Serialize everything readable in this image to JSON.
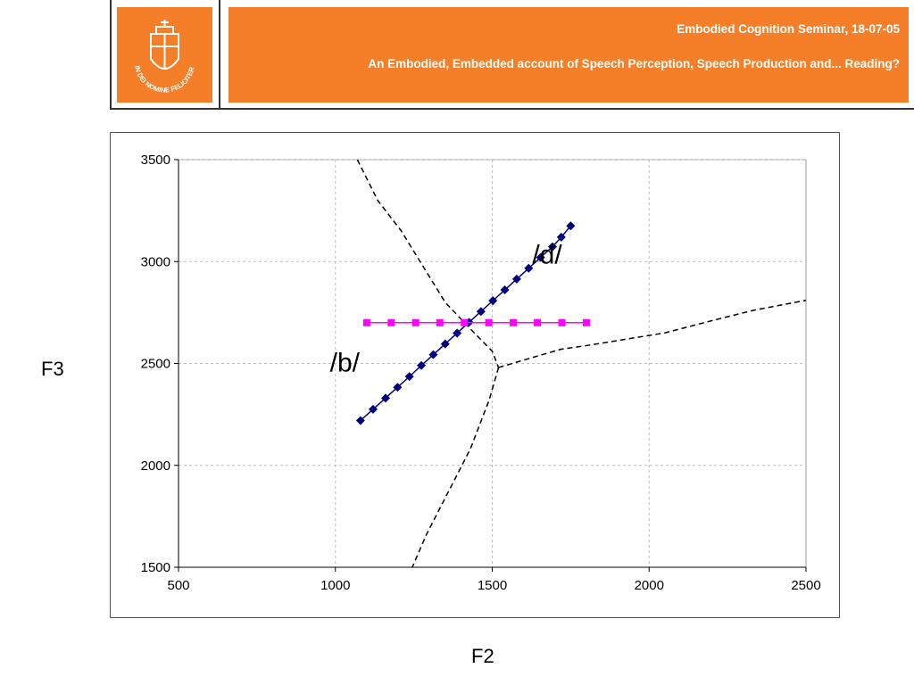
{
  "header": {
    "seminar": "Embodied Cognition Seminar, 18-07-05",
    "title": "An Embodied, Embedded account of Speech Perception, Speech Production and... Reading?",
    "logo_text": "IN DEI NOMINE FELICITER",
    "accent_color": "#f47f28"
  },
  "chart_data": {
    "type": "scatter",
    "xlabel": "F2",
    "ylabel": "F3",
    "xlim": [
      500,
      2500
    ],
    "ylim": [
      1500,
      3500
    ],
    "xticks": [
      "500",
      "1000",
      "1500",
      "2000",
      "2500"
    ],
    "yticks": [
      "1500",
      "2000",
      "2500",
      "3000",
      "3500"
    ],
    "grid": true,
    "series": [
      {
        "color": "#00007f",
        "marker": "diamond",
        "points": [
          [
            1080,
            2220
          ],
          [
            1120,
            2275
          ],
          [
            1160,
            2330
          ],
          [
            1198,
            2383
          ],
          [
            1236,
            2436
          ],
          [
            1274,
            2490
          ],
          [
            1312,
            2543
          ],
          [
            1350,
            2596
          ],
          [
            1388,
            2649
          ],
          [
            1426,
            2702
          ],
          [
            1464,
            2755
          ],
          [
            1502,
            2808
          ],
          [
            1540,
            2861
          ],
          [
            1578,
            2914
          ],
          [
            1616,
            2967
          ],
          [
            1654,
            3020
          ],
          [
            1692,
            3073
          ],
          [
            1720,
            3120
          ],
          [
            1750,
            3175
          ]
        ]
      },
      {
        "color": "#ff00ff",
        "marker": "square",
        "points": [
          [
            1100,
            2700
          ],
          [
            1178,
            2700
          ],
          [
            1256,
            2700
          ],
          [
            1333,
            2700
          ],
          [
            1411,
            2700
          ],
          [
            1489,
            2700
          ],
          [
            1567,
            2700
          ],
          [
            1644,
            2700
          ],
          [
            1722,
            2700
          ],
          [
            1800,
            2700
          ]
        ]
      }
    ],
    "boundaries": [
      [
        [
          1070,
          3500
        ],
        [
          1135,
          3300
        ],
        [
          1210,
          3150
        ],
        [
          1290,
          2950
        ],
        [
          1350,
          2800
        ],
        [
          1430,
          2670
        ],
        [
          1500,
          2560
        ],
        [
          1520,
          2480
        ]
      ],
      [
        [
          1520,
          2480
        ],
        [
          1630,
          2530
        ],
        [
          1720,
          2570
        ],
        [
          1810,
          2590
        ],
        [
          2050,
          2650
        ],
        [
          2200,
          2710
        ],
        [
          2330,
          2760
        ],
        [
          2500,
          2810
        ]
      ],
      [
        [
          1520,
          2480
        ],
        [
          1490,
          2320
        ],
        [
          1430,
          2080
        ],
        [
          1350,
          1840
        ],
        [
          1290,
          1660
        ],
        [
          1245,
          1500
        ]
      ]
    ],
    "annotations": [
      {
        "text": "/d/",
        "x": 1675,
        "y": 2990
      },
      {
        "text": "/b/",
        "x": 1030,
        "y": 2460
      }
    ]
  }
}
